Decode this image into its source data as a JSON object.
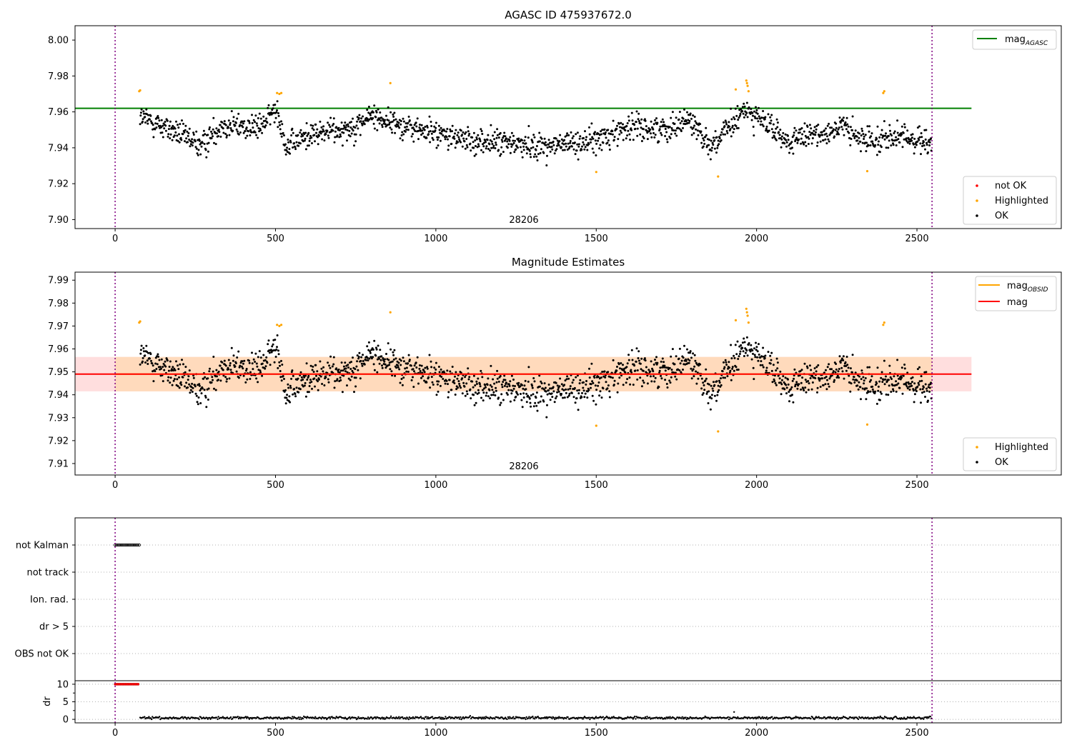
{
  "colors": {
    "ok": "#000000",
    "highlighted": "#ffa500",
    "not_ok": "#ff0000",
    "mag_agasc_line": "#008000",
    "mag_obsid_line": "#ffa500",
    "mag_line": "#ff0000",
    "band_fill": "#ffc8c8",
    "band_fill_inner": "#ffd9b8",
    "obs_boundary": "#800080",
    "grid": "#b0b0b0"
  },
  "chart_data": [
    {
      "type": "scatter",
      "title": "AGASC ID 475937672.0",
      "xlim": [
        -125,
        2950
      ],
      "ylim": [
        7.895,
        8.008
      ],
      "xticks": [
        "0",
        "500",
        "1000",
        "1500",
        "2000",
        "2500"
      ],
      "yticks": [
        "7.90",
        "7.92",
        "7.94",
        "7.96",
        "7.98",
        "8.00"
      ],
      "obs_boundaries_x": [
        0,
        2547
      ],
      "obsid_label": "28206",
      "mag_agasc": {
        "value": 7.962,
        "x_range": [
          -125,
          2670
        ]
      },
      "legend_top": [
        {
          "label": "mag",
          "sub": "AGASC",
          "series": "mag_agasc"
        }
      ],
      "legend_bottom": [
        {
          "label": "not OK",
          "series": "not_ok"
        },
        {
          "label": "Highlighted",
          "series": "highlighted"
        },
        {
          "label": "OK",
          "series": "ok"
        }
      ],
      "ok_points": {
        "x_range": [
          78,
          2545
        ],
        "n": 1650,
        "base": 7.948,
        "trend": [
          [
            78,
            7.957
          ],
          [
            150,
            7.952
          ],
          [
            270,
            7.941
          ],
          [
            330,
            7.953
          ],
          [
            450,
            7.951
          ],
          [
            505,
            7.962
          ],
          [
            535,
            7.94
          ],
          [
            600,
            7.947
          ],
          [
            750,
            7.952
          ],
          [
            800,
            7.958
          ],
          [
            900,
            7.952
          ],
          [
            1100,
            7.944
          ],
          [
            1350,
            7.941
          ],
          [
            1500,
            7.944
          ],
          [
            1600,
            7.952
          ],
          [
            1700,
            7.95
          ],
          [
            1790,
            7.956
          ],
          [
            1860,
            7.941
          ],
          [
            1920,
            7.952
          ],
          [
            1970,
            7.962
          ],
          [
            2050,
            7.95
          ],
          [
            2100,
            7.943
          ],
          [
            2200,
            7.948
          ],
          [
            2270,
            7.952
          ],
          [
            2320,
            7.944
          ],
          [
            2400,
            7.946
          ],
          [
            2545,
            7.944
          ]
        ],
        "spread": 0.006
      },
      "highlighted_points": [
        {
          "x": 75,
          "y": 7.9715
        },
        {
          "x": 78,
          "y": 7.972
        },
        {
          "x": 505,
          "y": 7.9705
        },
        {
          "x": 512,
          "y": 7.97
        },
        {
          "x": 518,
          "y": 7.9705
        },
        {
          "x": 858,
          "y": 7.976
        },
        {
          "x": 1500,
          "y": 7.9265
        },
        {
          "x": 1880,
          "y": 7.924
        },
        {
          "x": 1935,
          "y": 7.9725
        },
        {
          "x": 1968,
          "y": 7.9775
        },
        {
          "x": 1970,
          "y": 7.976
        },
        {
          "x": 1972,
          "y": 7.9745
        },
        {
          "x": 1975,
          "y": 7.9715
        },
        {
          "x": 2345,
          "y": 7.927
        },
        {
          "x": 2395,
          "y": 7.9705
        },
        {
          "x": 2398,
          "y": 7.9715
        }
      ]
    },
    {
      "type": "scatter",
      "title": "Magnitude Estimates",
      "xlim": [
        -125,
        2950
      ],
      "ylim": [
        7.905,
        7.9935
      ],
      "xticks": [
        "0",
        "500",
        "1000",
        "1500",
        "2000",
        "2500"
      ],
      "yticks": [
        "7.91",
        "7.92",
        "7.93",
        "7.94",
        "7.95",
        "7.96",
        "7.97",
        "7.98",
        "7.99"
      ],
      "obs_boundaries_x": [
        0,
        2547
      ],
      "obsid_label": "28206",
      "mag": {
        "value": 7.949,
        "x_range": [
          -125,
          2670
        ]
      },
      "mag_obsid": {
        "value": 7.949,
        "x_range": [
          0,
          2547
        ]
      },
      "band": {
        "low": 7.9415,
        "high": 7.9565,
        "x_range": [
          -125,
          2670
        ],
        "inner_x_range": [
          0,
          2547
        ]
      },
      "legend_top": [
        {
          "label": "mag",
          "sub": "OBSID",
          "series": "mag_obsid"
        },
        {
          "label": "mag",
          "series": "mag"
        }
      ],
      "legend_bottom": [
        {
          "label": "Highlighted",
          "series": "highlighted"
        },
        {
          "label": "OK",
          "series": "ok"
        }
      ]
    },
    {
      "type": "scatter",
      "title": "",
      "xlim": [
        -125,
        2950
      ],
      "xticks": [
        "0",
        "500",
        "1000",
        "1500",
        "2000",
        "2500"
      ],
      "obs_boundaries_x": [
        0,
        2547
      ],
      "flag_rows": [
        "not Kalman",
        "not track",
        "Ion. rad.",
        "dr > 5",
        "OBS not OK"
      ],
      "flagged": [
        {
          "row": "not Kalman",
          "x_range": [
            0,
            75
          ]
        }
      ],
      "dr_ylabel": "dr",
      "dr_ylim": [
        -1,
        11
      ],
      "dr_yticks": [
        "0",
        "5",
        "10"
      ],
      "dr_high": {
        "value": 10,
        "x_range": [
          0,
          75
        ]
      },
      "dr_low": {
        "value": 0.4,
        "x_range": [
          78,
          2545
        ],
        "spread": 0.3
      },
      "dr_outlier": {
        "x": 1930,
        "y": 2.1
      }
    }
  ]
}
